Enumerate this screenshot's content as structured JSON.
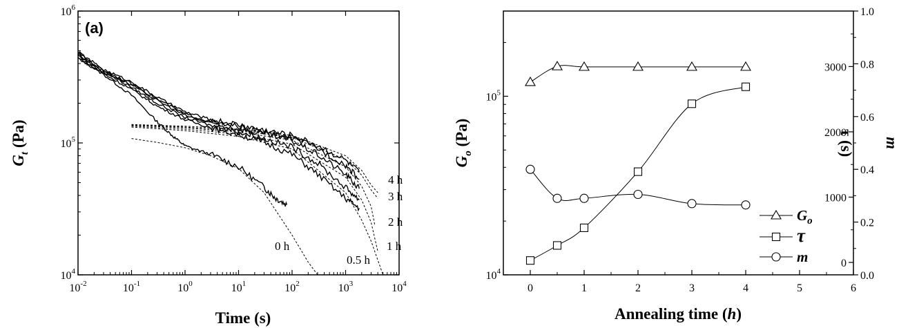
{
  "chart_data": [
    {
      "type": "line",
      "panel_label": "(a)",
      "xlabel": "Time (s)",
      "ylabel_main": "G",
      "ylabel_sub": "t",
      "ylabel_unit": " (Pa)",
      "xscale": "log",
      "yscale": "log",
      "xlim": [
        0.01,
        10000
      ],
      "ylim": [
        10000,
        1000000
      ],
      "x_ticks": [
        {
          "v": 0.01,
          "base": "10",
          "exp": "-2"
        },
        {
          "v": 0.1,
          "base": "10",
          "exp": "-1"
        },
        {
          "v": 1,
          "base": "10",
          "exp": "0"
        },
        {
          "v": 10,
          "base": "10",
          "exp": "1"
        },
        {
          "v": 100,
          "base": "10",
          "exp": "2"
        },
        {
          "v": 1000,
          "base": "10",
          "exp": "3"
        },
        {
          "v": 10000,
          "base": "10",
          "exp": "4"
        }
      ],
      "y_ticks": [
        {
          "v": 10000,
          "base": "10",
          "exp": "4"
        },
        {
          "v": 100000,
          "base": "10",
          "exp": "5"
        },
        {
          "v": 1000000,
          "base": "10",
          "exp": "6"
        }
      ],
      "series": [
        {
          "name": "0 h",
          "x": [
            0.01,
            0.03,
            0.1,
            0.3,
            0.6,
            1,
            3,
            10,
            30,
            50,
            80
          ],
          "y": [
            440000,
            330000,
            230000,
            145000,
            112000,
            95000,
            82000,
            66000,
            46000,
            38000,
            34000
          ],
          "fit_x": [
            0.1,
            0.3,
            1,
            3,
            10,
            30,
            100,
            200,
            300
          ],
          "fit_y": [
            108000,
            101000,
            92000,
            80000,
            64000,
            42000,
            20000,
            12500,
            10000
          ]
        },
        {
          "name": "0.5 h",
          "x": [
            0.01,
            0.03,
            0.1,
            0.3,
            1,
            3,
            10,
            30,
            100,
            300,
            1000,
            1800
          ],
          "y": [
            440000,
            335000,
            255000,
            190000,
            150000,
            131000,
            116000,
            101000,
            82000,
            58000,
            38000,
            32000
          ],
          "fit_x": [
            0.1,
            1,
            10,
            100,
            1000,
            2000,
            3000,
            5000
          ],
          "fit_y": [
            132000,
            124000,
            112000,
            90000,
            42000,
            26000,
            18000,
            10000
          ]
        },
        {
          "name": "1 h",
          "x": [
            0.01,
            0.03,
            0.1,
            0.3,
            1,
            3,
            10,
            30,
            100,
            300,
            1000,
            1800
          ],
          "y": [
            460000,
            345000,
            265000,
            200000,
            156000,
            136000,
            121000,
            108000,
            93000,
            70000,
            46000,
            37000
          ],
          "fit_x": [
            0.1,
            1,
            10,
            100,
            1000,
            2000,
            3000,
            4000
          ],
          "fit_y": [
            134000,
            127000,
            117000,
            98000,
            55000,
            37000,
            25000,
            15000
          ]
        },
        {
          "name": "2 h",
          "x": [
            0.01,
            0.03,
            0.1,
            0.3,
            1,
            3,
            10,
            30,
            100,
            300,
            1000,
            1800
          ],
          "y": [
            470000,
            350000,
            275000,
            210000,
            162000,
            141000,
            128000,
            116000,
            104000,
            82000,
            58000,
            45000
          ],
          "fit_x": [
            0.1,
            1,
            10,
            100,
            1000,
            2000,
            3000,
            3500
          ],
          "fit_y": [
            136000,
            130000,
            121000,
            105000,
            66000,
            47000,
            33000,
            24000
          ]
        },
        {
          "name": "3 h",
          "x": [
            0.01,
            0.03,
            0.1,
            0.3,
            1,
            3,
            10,
            30,
            100,
            300,
            1000,
            1800
          ],
          "y": [
            480000,
            355000,
            282000,
            215000,
            166000,
            145000,
            132000,
            120000,
            109000,
            91000,
            68000,
            53000
          ],
          "fit_x": [
            0.1,
            1,
            10,
            100,
            1000,
            2000,
            3000,
            4000
          ],
          "fit_y": [
            137000,
            132000,
            124000,
            110000,
            75000,
            57000,
            44000,
            38000
          ]
        },
        {
          "name": "4 h",
          "x": [
            0.01,
            0.03,
            0.1,
            0.3,
            1,
            3,
            10,
            30,
            100,
            300,
            1000,
            1800
          ],
          "y": [
            490000,
            360000,
            290000,
            222000,
            172000,
            150000,
            137000,
            125000,
            114000,
            96000,
            74000,
            60000
          ],
          "fit_x": [
            0.1,
            1,
            10,
            100,
            1000,
            2000,
            3000,
            4000
          ],
          "fit_y": [
            138000,
            134000,
            127000,
            114000,
            80000,
            62000,
            48000,
            42000
          ]
        }
      ]
    },
    {
      "type": "line",
      "xlabel_main": "Annealing time (",
      "xlabel_italic": "h",
      "xlabel_end": ")",
      "ylabel_left_main": "G",
      "ylabel_left_sub": "o",
      "ylabel_left_unit": " (Pa)",
      "ylabel_right1": "τ (s)",
      "ylabel_right2": "m",
      "xlim": [
        -0.5,
        6
      ],
      "x_ticks": [
        "0",
        "1",
        "2",
        "3",
        "4",
        "5",
        "6"
      ],
      "ylim_left": [
        10000,
        300000
      ],
      "yscale_left": "log",
      "y_ticks_left": [
        {
          "v": 10000,
          "base": "10",
          "exp": "4"
        },
        {
          "v": 100000,
          "base": "10",
          "exp": "5"
        }
      ],
      "ylim_tau": [
        -190,
        3850
      ],
      "y_ticks_tau": [
        "0",
        "1000",
        "2000",
        "3000"
      ],
      "ylim_m": [
        0,
        1.0
      ],
      "y_ticks_m": [
        "0.0",
        "0.2",
        "0.4",
        "0.6",
        "0.8",
        "1.0"
      ],
      "legend_position": "bottom-right",
      "series": [
        {
          "name": "G",
          "name_sub": "o",
          "axis": "left",
          "marker": "triangle",
          "x": [
            0,
            0.5,
            1,
            2,
            3,
            4
          ],
          "y": [
            120000,
            147000,
            146000,
            146000,
            146000,
            146000
          ]
        },
        {
          "name": "τ",
          "axis": "tau",
          "marker": "square",
          "x": [
            0,
            0.5,
            1,
            2,
            3,
            4
          ],
          "y": [
            30,
            260,
            530,
            1390,
            2430,
            2690
          ]
        },
        {
          "name": "m",
          "axis": "m",
          "marker": "circle",
          "x": [
            0,
            0.5,
            1,
            2,
            3,
            4
          ],
          "y": [
            0.4,
            0.29,
            0.29,
            0.305,
            0.27,
            0.265
          ]
        }
      ]
    }
  ]
}
